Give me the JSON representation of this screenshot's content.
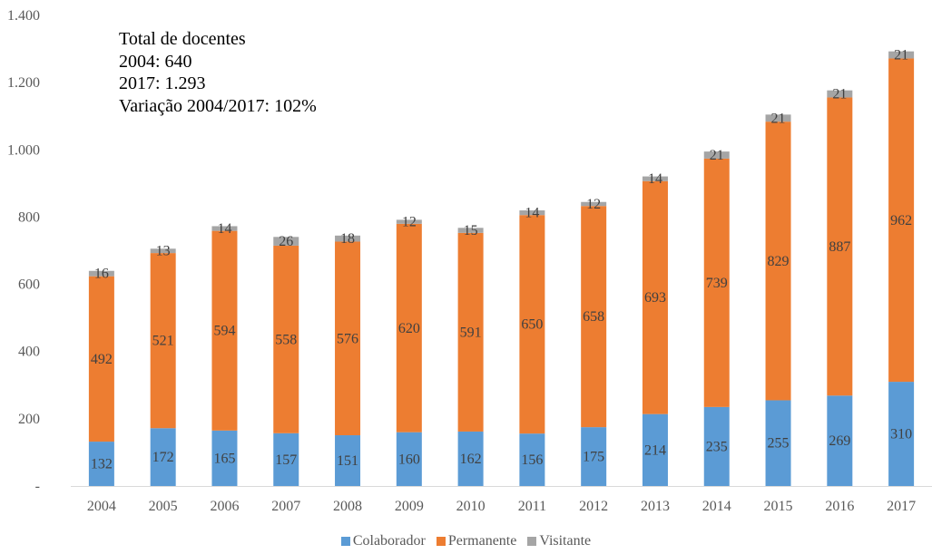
{
  "annotation": {
    "line1": "Total de docentes",
    "line2": "2004: 640",
    "line3": "2017: 1.293",
    "line4": "Variação 2004/2017: 102%"
  },
  "chart_data": {
    "type": "bar",
    "stacked": true,
    "categories": [
      "2004",
      "2005",
      "2006",
      "2007",
      "2008",
      "2009",
      "2010",
      "2011",
      "2012",
      "2013",
      "2014",
      "2015",
      "2016",
      "2017"
    ],
    "series": [
      {
        "name": "Colaborador",
        "color": "#5b9bd5",
        "values": [
          132,
          172,
          165,
          157,
          151,
          160,
          162,
          156,
          175,
          214,
          235,
          255,
          269,
          310
        ]
      },
      {
        "name": "Permanente",
        "color": "#ed7d31",
        "values": [
          492,
          521,
          594,
          558,
          576,
          620,
          591,
          650,
          658,
          693,
          739,
          829,
          887,
          962
        ]
      },
      {
        "name": "Visitante",
        "color": "#a5a5a5",
        "values": [
          16,
          13,
          14,
          26,
          18,
          12,
          15,
          14,
          12,
          14,
          21,
          21,
          21,
          21
        ]
      }
    ],
    "yticks": [
      "-",
      "200",
      "400",
      "600",
      "800",
      "1.000",
      "1.200",
      "1.400"
    ],
    "ylim": [
      0,
      1400
    ],
    "grid": false,
    "legend": "bottom"
  }
}
